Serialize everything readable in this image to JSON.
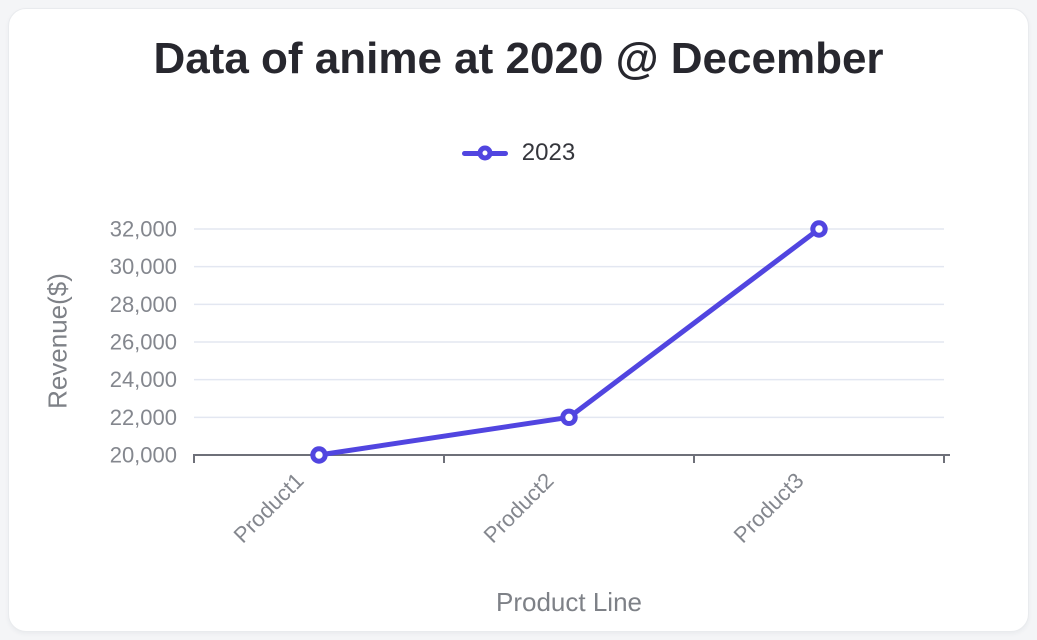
{
  "chart_data": {
    "type": "line",
    "title": "Data of anime at 2020 @ December",
    "categories": [
      "Product1",
      "Product2",
      "Product3"
    ],
    "series": [
      {
        "name": "2023",
        "values": [
          20000,
          22000,
          32000
        ],
        "color": "#5145E0"
      }
    ],
    "xlabel": "Product Line",
    "ylabel": "Revenue($)",
    "ylim": [
      20000,
      32000
    ],
    "ytick_step": 2000,
    "ytick_labels": [
      "20,000",
      "22,000",
      "24,000",
      "26,000",
      "28,000",
      "30,000",
      "32,000"
    ],
    "grid": true,
    "legend_position": "top",
    "marker_style": "hollow-circle"
  },
  "colors": {
    "accent": "#5145E0",
    "axis_line": "#6E7079",
    "grid_line": "#E3E7F1",
    "axis_label": "#84878E",
    "axis_name": "#7E8187",
    "title": "#27272E",
    "legend_text": "#35363C",
    "page_bg": "#F4F5F7",
    "card_bg": "#FFFFFF",
    "card_border": "#E9EBEE"
  }
}
